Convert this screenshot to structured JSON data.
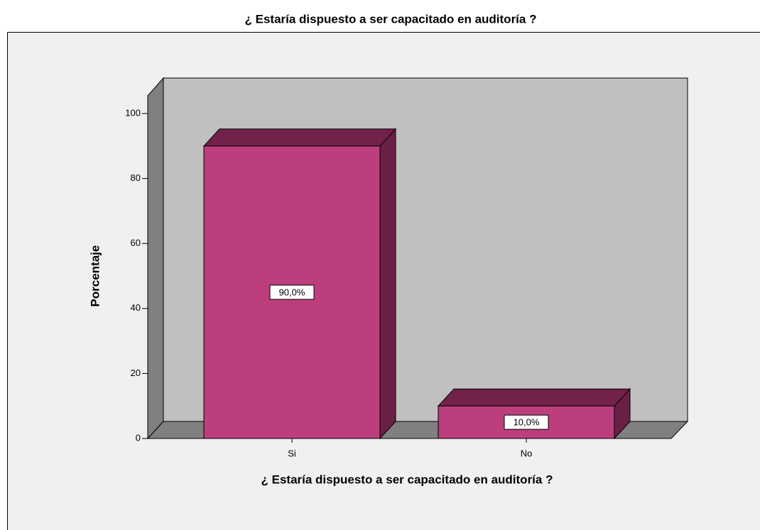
{
  "chart_data": {
    "type": "bar3d",
    "title": "¿ Estaría  dispuesto a ser capacitado en auditoría ?",
    "xlabel": "¿ Estaría  dispuesto a ser capacitado en auditoría ?",
    "ylabel": "Porcentaje",
    "categories": [
      "Si",
      "No"
    ],
    "values": [
      90,
      10
    ],
    "value_labels": [
      "90,0%",
      "10,0%"
    ],
    "color": "#bc3e7c",
    "ylim": [
      0,
      105
    ],
    "yticks": [
      0,
      20,
      40,
      60,
      80,
      100
    ]
  }
}
